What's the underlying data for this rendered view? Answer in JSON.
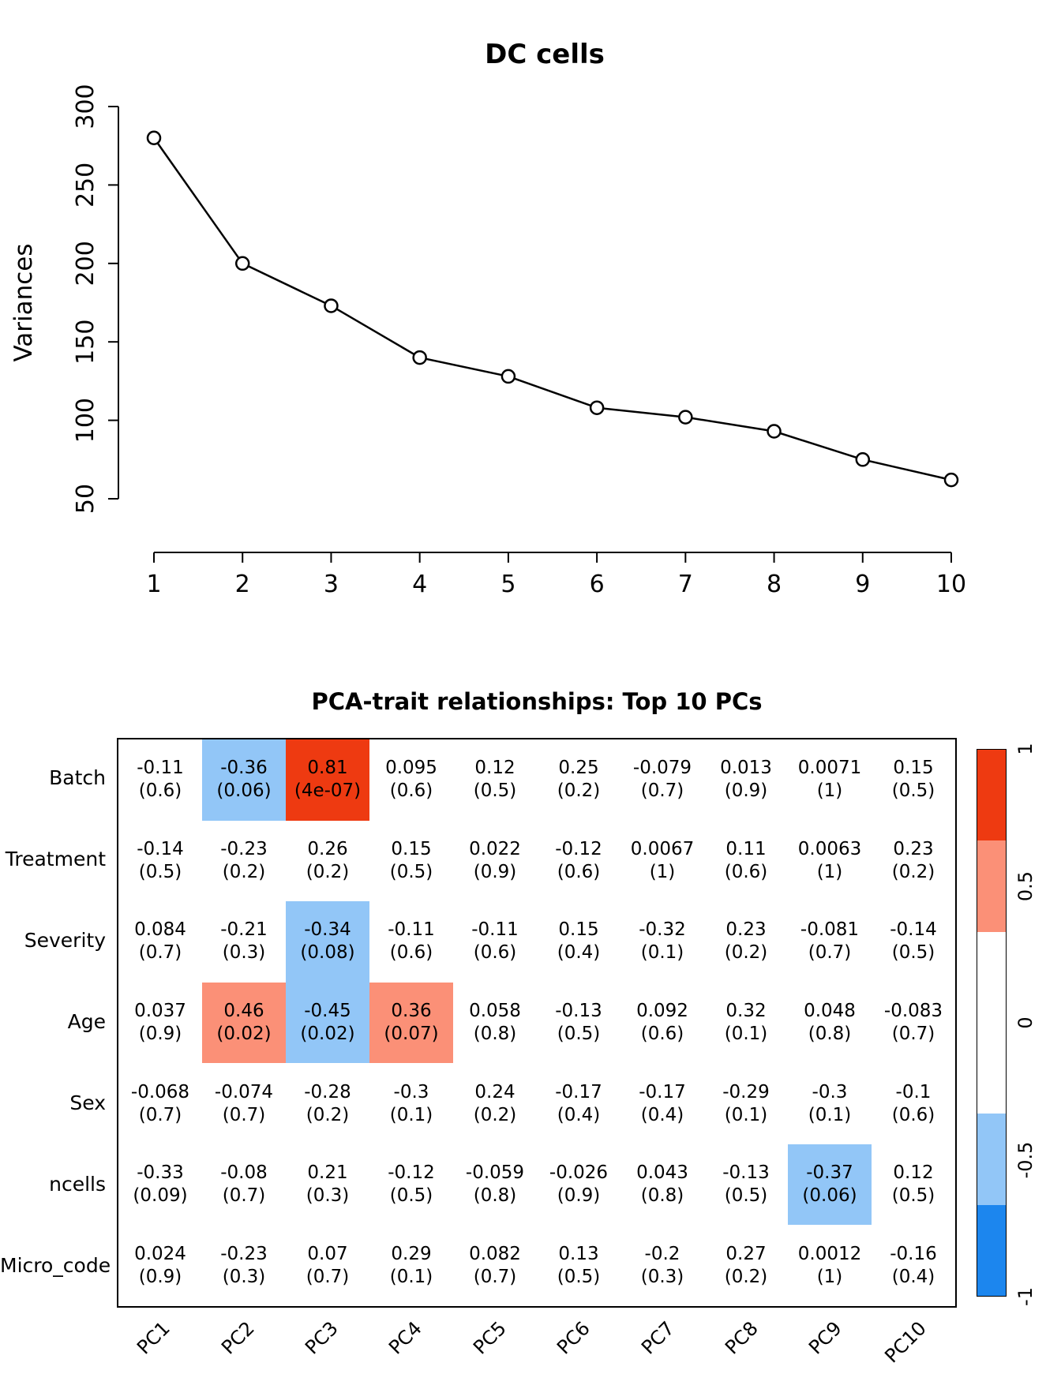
{
  "chart_data": [
    {
      "type": "line",
      "title": "DC cells",
      "xlabel": "",
      "ylabel": "Variances",
      "x": [
        1,
        2,
        3,
        4,
        5,
        6,
        7,
        8,
        9,
        10
      ],
      "y": [
        280,
        200,
        173,
        140,
        128,
        108,
        102,
        93,
        75,
        62
      ],
      "xticks": [
        1,
        2,
        3,
        4,
        5,
        6,
        7,
        8,
        9,
        10
      ],
      "yticks": [
        50,
        100,
        150,
        200,
        250,
        300
      ],
      "ylim": [
        50,
        300
      ],
      "marker": "open-circle",
      "grid": false,
      "legend_position": "none"
    },
    {
      "type": "heatmap",
      "title": "PCA-trait relationships: Top 10 PCs",
      "columns": [
        "PC1",
        "PC2",
        "PC3",
        "PC4",
        "PC5",
        "PC6",
        "PC7",
        "PC8",
        "PC9",
        "PC10"
      ],
      "rows": [
        "Batch",
        "Treatment",
        "Severity",
        "Age",
        "Sex",
        "ncells",
        "Micro_code"
      ],
      "correlations": [
        [
          -0.11,
          -0.36,
          0.81,
          0.095,
          0.12,
          0.25,
          -0.079,
          0.013,
          0.0071,
          0.15
        ],
        [
          -0.14,
          -0.23,
          0.26,
          0.15,
          0.022,
          -0.12,
          0.0067,
          0.11,
          0.0063,
          0.23
        ],
        [
          0.084,
          -0.21,
          -0.34,
          -0.11,
          -0.11,
          0.15,
          -0.32,
          0.23,
          -0.081,
          -0.14
        ],
        [
          0.037,
          0.46,
          -0.45,
          0.36,
          0.058,
          -0.13,
          0.092,
          0.32,
          0.048,
          -0.083
        ],
        [
          -0.068,
          -0.074,
          -0.28,
          -0.3,
          0.24,
          -0.17,
          -0.17,
          -0.29,
          -0.3,
          -0.1
        ],
        [
          -0.33,
          -0.08,
          0.21,
          -0.12,
          -0.059,
          -0.026,
          0.043,
          -0.13,
          -0.37,
          0.12
        ],
        [
          0.024,
          -0.23,
          0.07,
          0.29,
          0.082,
          0.13,
          -0.2,
          0.27,
          0.0012,
          -0.16
        ]
      ],
      "pvalues": [
        [
          "0.6",
          "0.06",
          "4e-07",
          "0.6",
          "0.5",
          "0.2",
          "0.7",
          "0.9",
          "1",
          "0.5"
        ],
        [
          "0.5",
          "0.2",
          "0.2",
          "0.5",
          "0.9",
          "0.6",
          "1",
          "0.6",
          "1",
          "0.2"
        ],
        [
          "0.7",
          "0.3",
          "0.08",
          "0.6",
          "0.6",
          "0.4",
          "0.1",
          "0.2",
          "0.7",
          "0.5"
        ],
        [
          "0.9",
          "0.02",
          "0.02",
          "0.07",
          "0.8",
          "0.5",
          "0.6",
          "0.1",
          "0.8",
          "0.7"
        ],
        [
          "0.7",
          "0.7",
          "0.2",
          "0.1",
          "0.2",
          "0.4",
          "0.4",
          "0.1",
          "0.1",
          "0.6"
        ],
        [
          "0.09",
          "0.7",
          "0.3",
          "0.5",
          "0.8",
          "0.9",
          "0.8",
          "0.5",
          "0.06",
          "0.5"
        ],
        [
          "0.9",
          "0.3",
          "0.7",
          "0.1",
          "0.7",
          "0.5",
          "0.3",
          "0.2",
          "1",
          "0.4"
        ]
      ],
      "colorbar": {
        "ticks": [
          "1",
          "0.5",
          "0",
          "-0.5",
          "-1"
        ],
        "range": [
          -1,
          1
        ],
        "breaks": [
          0.3333,
          0.6667
        ],
        "colors": {
          "strong_pos": "#EE3A11",
          "light_pos": "#FB9077",
          "neutral": "#FFFFFF",
          "light_neg": "#92C6F7",
          "strong_neg": "#1C86EE"
        }
      },
      "legend_position": "right",
      "grid": false
    }
  ]
}
